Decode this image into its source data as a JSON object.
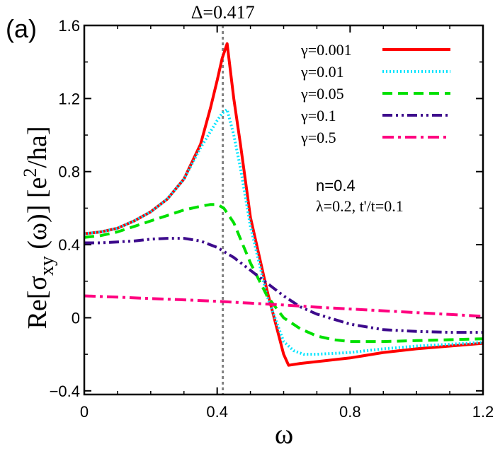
{
  "chart_data": {
    "type": "line",
    "panel_label": "(a)",
    "title": "",
    "xlabel": "ω",
    "ylabel_parts": {
      "pre": "Re[σ",
      "sub": "xy",
      "mid": " (ω)] [e",
      "sup": "2",
      "post": "/ha]"
    },
    "xlim": [
      0,
      1.2
    ],
    "ylim": [
      -0.42,
      1.6
    ],
    "xticks": [
      0,
      0.4,
      0.8,
      1.2
    ],
    "xtick_labels": [
      "0",
      "0.4",
      "0.8",
      "1.2"
    ],
    "yticks": [
      -0.4,
      0,
      0.4,
      0.8,
      1.2,
      1.6
    ],
    "ytick_labels": [
      "−0.4",
      "0",
      "0.4",
      "0.8",
      "1.2",
      "1.6"
    ],
    "vline": {
      "x": 0.417,
      "label": "Δ=0.417",
      "color": "#808080"
    },
    "annotations": [
      "n=0.4",
      "λ=0.2, t'/t=0.1"
    ],
    "legend_position": "top-right",
    "series": [
      {
        "name": "γ=0.001",
        "color": "#ff0000",
        "dash": "solid",
        "x": [
          0,
          0.05,
          0.1,
          0.15,
          0.2,
          0.25,
          0.3,
          0.35,
          0.38,
          0.4,
          0.415,
          0.43,
          0.45,
          0.47,
          0.5,
          0.55,
          0.6,
          0.615,
          0.65,
          0.7,
          0.8,
          0.9,
          1.0,
          1.1,
          1.2
        ],
        "y": [
          0.46,
          0.47,
          0.49,
          0.53,
          0.58,
          0.65,
          0.76,
          0.95,
          1.15,
          1.3,
          1.42,
          1.5,
          1.2,
          0.95,
          0.55,
          0.15,
          -0.2,
          -0.26,
          -0.25,
          -0.24,
          -0.22,
          -0.19,
          -0.17,
          -0.155,
          -0.14
        ]
      },
      {
        "name": "γ=0.01",
        "color": "#00e5ff",
        "dash": "dotted",
        "x": [
          0,
          0.05,
          0.1,
          0.15,
          0.2,
          0.25,
          0.3,
          0.35,
          0.38,
          0.4,
          0.415,
          0.43,
          0.45,
          0.47,
          0.5,
          0.55,
          0.6,
          0.63,
          0.66,
          0.7,
          0.8,
          0.9,
          1.0,
          1.1,
          1.2
        ],
        "y": [
          0.46,
          0.47,
          0.49,
          0.53,
          0.58,
          0.65,
          0.76,
          0.93,
          1.02,
          1.08,
          1.12,
          1.14,
          1.0,
          0.82,
          0.5,
          0.12,
          -0.13,
          -0.18,
          -0.2,
          -0.2,
          -0.19,
          -0.17,
          -0.155,
          -0.145,
          -0.135
        ]
      },
      {
        "name": "γ=0.05",
        "color": "#00e000",
        "dash": "dashed",
        "x": [
          0,
          0.05,
          0.1,
          0.15,
          0.2,
          0.25,
          0.3,
          0.35,
          0.38,
          0.4,
          0.42,
          0.45,
          0.5,
          0.55,
          0.6,
          0.65,
          0.7,
          0.75,
          0.8,
          0.9,
          1.0,
          1.1,
          1.2
        ],
        "y": [
          0.44,
          0.45,
          0.47,
          0.5,
          0.53,
          0.56,
          0.59,
          0.61,
          0.62,
          0.62,
          0.6,
          0.52,
          0.3,
          0.12,
          0.0,
          -0.06,
          -0.1,
          -0.12,
          -0.13,
          -0.13,
          -0.125,
          -0.12,
          -0.115
        ]
      },
      {
        "name": "γ=0.1",
        "color": "#3d0a8c",
        "dash": "dashdotdot",
        "x": [
          0,
          0.05,
          0.1,
          0.15,
          0.2,
          0.25,
          0.3,
          0.35,
          0.4,
          0.45,
          0.5,
          0.55,
          0.6,
          0.65,
          0.7,
          0.8,
          0.9,
          1.0,
          1.1,
          1.2
        ],
        "y": [
          0.41,
          0.41,
          0.415,
          0.42,
          0.43,
          0.435,
          0.435,
          0.42,
          0.385,
          0.33,
          0.26,
          0.19,
          0.12,
          0.06,
          0.02,
          -0.035,
          -0.065,
          -0.075,
          -0.08,
          -0.08
        ]
      },
      {
        "name": "γ=0.5",
        "color": "#ff0080",
        "dash": "dashdot",
        "x": [
          0,
          0.1,
          0.2,
          0.3,
          0.4,
          0.5,
          0.6,
          0.7,
          0.8,
          0.9,
          1.0,
          1.1,
          1.2
        ],
        "y": [
          0.12,
          0.113,
          0.105,
          0.098,
          0.09,
          0.08,
          0.07,
          0.058,
          0.048,
          0.038,
          0.028,
          0.018,
          0.008
        ]
      }
    ]
  }
}
